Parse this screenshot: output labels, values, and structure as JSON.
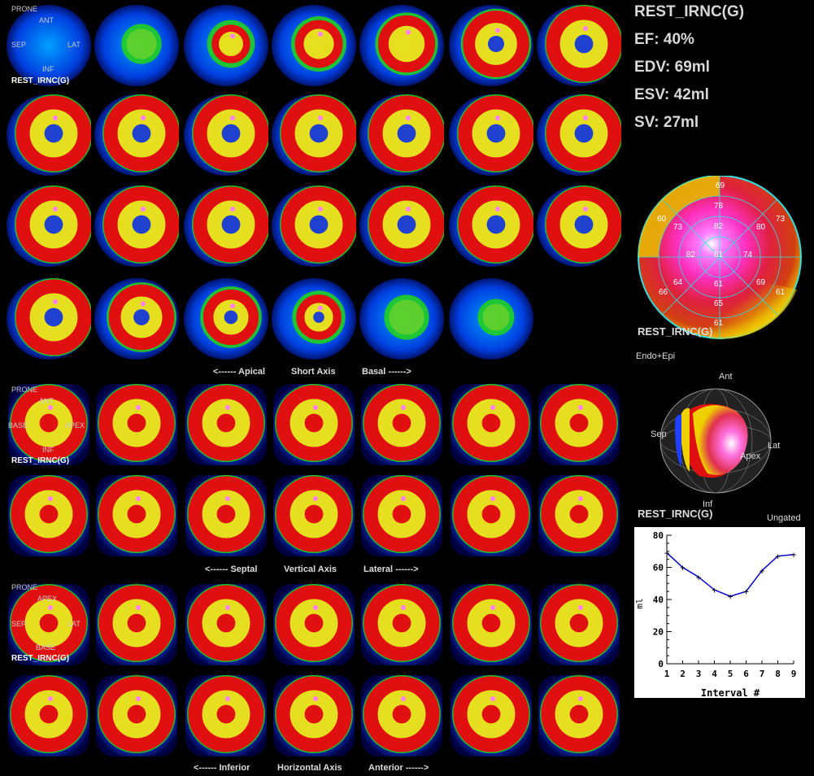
{
  "stats": {
    "title": "REST_IRNC(G)",
    "ef": "EF: 40%",
    "edv": "EDV: 69ml",
    "esv": "ESV: 42ml",
    "sv": "SV: 27ml"
  },
  "series_tag": "REST_IRNC(G)",
  "short_axis": {
    "orient": {
      "prone": "PRONE",
      "top": "ANT",
      "left": "SEP",
      "right": "LAT",
      "bottom": "INF"
    },
    "left_label": "<------ Apical",
    "center_label": "Short Axis",
    "right_label": "Basal ------>"
  },
  "vertical_axis": {
    "orient": {
      "prone": "PRONE",
      "top": "ANT",
      "left": "BASE",
      "right": "APEX",
      "bottom": "INF"
    },
    "left_label": "<------ Septal",
    "center_label": "Vertical Axis",
    "right_label": "Lateral ------>"
  },
  "horizontal_axis": {
    "orient": {
      "prone": "PRONE",
      "top": "APEX",
      "left": "SEP",
      "right": "LAT",
      "bottom": "BASE"
    },
    "left_label": "<------ Inferior",
    "center_label": "Horizontal Axis",
    "right_label": "Anterior ------>"
  },
  "polar_map": {
    "tag": "REST_IRNC(G)",
    "values": [
      "69",
      "78",
      "73",
      "60",
      "82",
      "80",
      "73",
      "82",
      "81",
      "74",
      "64",
      "61",
      "69",
      "61",
      "65",
      "66",
      "61"
    ]
  },
  "render3d": {
    "mode": "Endo+Epi",
    "ant": "Ant",
    "sep": "Sep",
    "lat": "Lat",
    "apex": "Apex",
    "inf": "Inf",
    "tag": "REST_IRNC(G)",
    "ungated": "Ungated"
  },
  "chart_data": {
    "type": "line",
    "x": [
      1,
      2,
      3,
      4,
      5,
      6,
      7,
      8,
      9
    ],
    "values": [
      69,
      60,
      54,
      46,
      42,
      45,
      58,
      67,
      68
    ],
    "xlabel": "Interval #",
    "ylabel": "ml",
    "ylim": [
      0,
      80
    ],
    "yticks": [
      "0",
      "20",
      "40",
      "60",
      "80"
    ],
    "xticks": [
      "1",
      "2",
      "3",
      "4",
      "5",
      "6",
      "7",
      "8",
      "9"
    ],
    "line_color": "#0000cc"
  }
}
